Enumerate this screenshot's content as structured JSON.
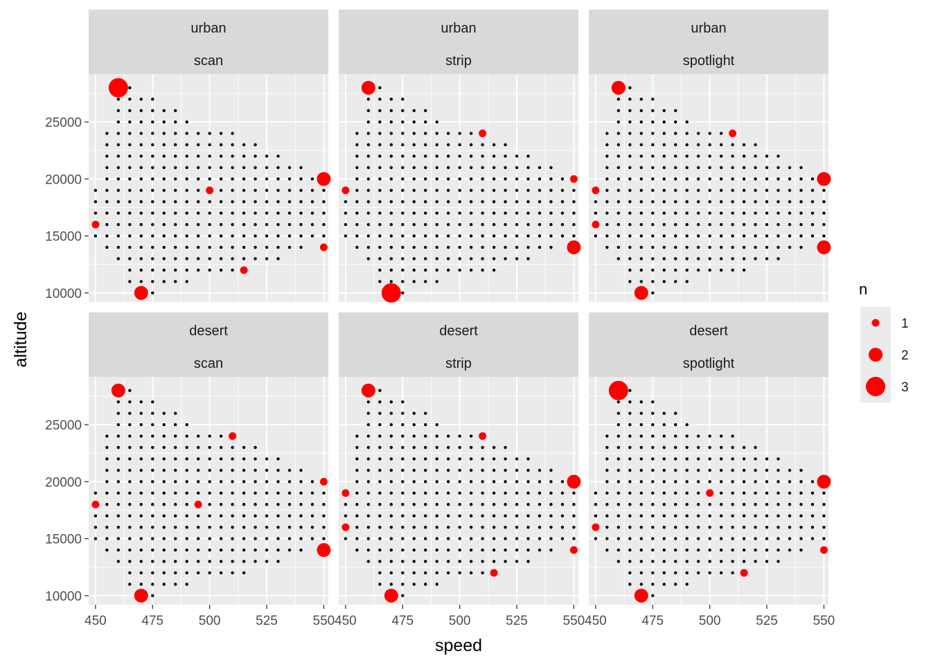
{
  "chart_data": {
    "type": "scatter",
    "facet_rows": [
      "urban",
      "desert"
    ],
    "facet_cols": [
      "scan",
      "strip",
      "spotlight"
    ],
    "xlabel": "speed",
    "ylabel": "altitude",
    "xlim": [
      447,
      552
    ],
    "ylim": [
      9200,
      29200
    ],
    "x_ticks": [
      450,
      475,
      500,
      525,
      550
    ],
    "y_ticks": [
      10000,
      15000,
      20000,
      25000
    ],
    "grid": true,
    "background_grid": {
      "x_step": 5,
      "y_step": 1000,
      "rows": [
        {
          "altitude": 28000,
          "speed": [
            465,
            465
          ]
        },
        {
          "altitude": 27000,
          "speed": [
            460,
            475
          ]
        },
        {
          "altitude": 26000,
          "speed": [
            460,
            485
          ]
        },
        {
          "altitude": 25000,
          "speed": [
            460,
            490
          ]
        },
        {
          "altitude": 24000,
          "speed": [
            455,
            510
          ]
        },
        {
          "altitude": 23000,
          "speed": [
            455,
            520
          ]
        },
        {
          "altitude": 22000,
          "speed": [
            455,
            530
          ]
        },
        {
          "altitude": 21000,
          "speed": [
            455,
            540
          ]
        },
        {
          "altitude": 20000,
          "speed": [
            455,
            550
          ]
        },
        {
          "altitude": 19000,
          "speed": [
            450,
            550
          ]
        },
        {
          "altitude": 18000,
          "speed": [
            450,
            550
          ]
        },
        {
          "altitude": 17000,
          "speed": [
            450,
            550
          ]
        },
        {
          "altitude": 16000,
          "speed": [
            450,
            550
          ]
        },
        {
          "altitude": 15000,
          "speed": [
            450,
            550
          ]
        },
        {
          "altitude": 14000,
          "speed": [
            455,
            540
          ]
        },
        {
          "altitude": 13000,
          "speed": [
            460,
            530
          ]
        },
        {
          "altitude": 12000,
          "speed": [
            465,
            515
          ]
        },
        {
          "altitude": 11000,
          "speed": [
            465,
            490
          ]
        },
        {
          "altitude": 10000,
          "speed": [
            475,
            475
          ]
        }
      ]
    },
    "size_legend": {
      "title": "n",
      "labels": [
        "1",
        "2",
        "3"
      ],
      "values": [
        1,
        2,
        3
      ]
    },
    "point_color": "#ff0000",
    "grid_dot_color": "#000000",
    "panel_background": "#ebebeb",
    "strip_background": "#d9d9d9",
    "panels": [
      {
        "row_label": "urban",
        "col_label": "scan",
        "points": [
          {
            "speed": 460,
            "altitude": 28000,
            "n": 3
          },
          {
            "speed": 550,
            "altitude": 20000,
            "n": 2
          },
          {
            "speed": 500,
            "altitude": 19000,
            "n": 1
          },
          {
            "speed": 450,
            "altitude": 16000,
            "n": 1
          },
          {
            "speed": 550,
            "altitude": 14000,
            "n": 1
          },
          {
            "speed": 515,
            "altitude": 12000,
            "n": 1
          },
          {
            "speed": 470,
            "altitude": 10000,
            "n": 2
          }
        ]
      },
      {
        "row_label": "urban",
        "col_label": "strip",
        "points": [
          {
            "speed": 460,
            "altitude": 28000,
            "n": 2
          },
          {
            "speed": 510,
            "altitude": 24000,
            "n": 1
          },
          {
            "speed": 550,
            "altitude": 20000,
            "n": 1
          },
          {
            "speed": 450,
            "altitude": 19000,
            "n": 1
          },
          {
            "speed": 550,
            "altitude": 14000,
            "n": 2
          },
          {
            "speed": 470,
            "altitude": 10000,
            "n": 3
          }
        ]
      },
      {
        "row_label": "urban",
        "col_label": "spotlight",
        "points": [
          {
            "speed": 460,
            "altitude": 28000,
            "n": 2
          },
          {
            "speed": 510,
            "altitude": 24000,
            "n": 1
          },
          {
            "speed": 550,
            "altitude": 20000,
            "n": 2
          },
          {
            "speed": 450,
            "altitude": 19000,
            "n": 1
          },
          {
            "speed": 450,
            "altitude": 16000,
            "n": 1
          },
          {
            "speed": 550,
            "altitude": 14000,
            "n": 2
          },
          {
            "speed": 470,
            "altitude": 10000,
            "n": 2
          }
        ]
      },
      {
        "row_label": "desert",
        "col_label": "scan",
        "points": [
          {
            "speed": 460,
            "altitude": 28000,
            "n": 2
          },
          {
            "speed": 510,
            "altitude": 24000,
            "n": 1
          },
          {
            "speed": 550,
            "altitude": 20000,
            "n": 1
          },
          {
            "speed": 450,
            "altitude": 18000,
            "n": 1
          },
          {
            "speed": 495,
            "altitude": 18000,
            "n": 1
          },
          {
            "speed": 550,
            "altitude": 14000,
            "n": 2
          },
          {
            "speed": 470,
            "altitude": 10000,
            "n": 2
          }
        ]
      },
      {
        "row_label": "desert",
        "col_label": "strip",
        "points": [
          {
            "speed": 460,
            "altitude": 28000,
            "n": 2
          },
          {
            "speed": 510,
            "altitude": 24000,
            "n": 1
          },
          {
            "speed": 550,
            "altitude": 20000,
            "n": 2
          },
          {
            "speed": 450,
            "altitude": 19000,
            "n": 1
          },
          {
            "speed": 450,
            "altitude": 16000,
            "n": 1
          },
          {
            "speed": 550,
            "altitude": 14000,
            "n": 1
          },
          {
            "speed": 515,
            "altitude": 12000,
            "n": 1
          },
          {
            "speed": 470,
            "altitude": 10000,
            "n": 2
          }
        ]
      },
      {
        "row_label": "desert",
        "col_label": "spotlight",
        "points": [
          {
            "speed": 460,
            "altitude": 28000,
            "n": 3
          },
          {
            "speed": 550,
            "altitude": 20000,
            "n": 2
          },
          {
            "speed": 500,
            "altitude": 19000,
            "n": 1
          },
          {
            "speed": 450,
            "altitude": 16000,
            "n": 1
          },
          {
            "speed": 550,
            "altitude": 14000,
            "n": 1
          },
          {
            "speed": 515,
            "altitude": 12000,
            "n": 1
          },
          {
            "speed": 470,
            "altitude": 10000,
            "n": 2
          }
        ]
      }
    ]
  }
}
